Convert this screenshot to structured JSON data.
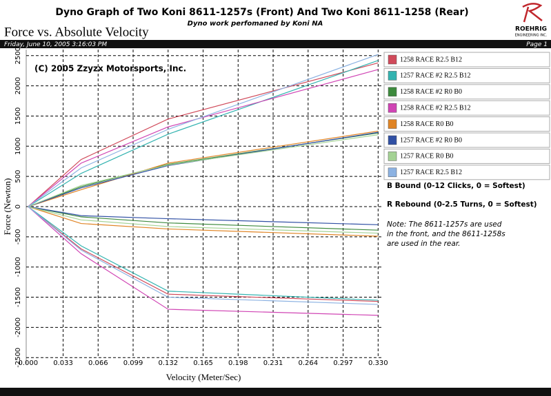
{
  "header": {
    "date": "Friday, June 10, 2005 3:16:03 PM",
    "page": "Page 1"
  },
  "logo": {
    "name": "ROEHRIG",
    "tagline": "ENGINEERING INC."
  },
  "chart_data": {
    "type": "line",
    "title": "Dyno Graph of Two Koni 8611-1257s (Front) And Two Koni 8611-1258 (Rear)",
    "subtitle": "Dyno work perfomaned by Koni NA",
    "heading": "Force vs. Absolute Velocity",
    "annotation": "(C) 2005 Zzyzx Motorsports, Inc.",
    "x_label": "Velocity (Meter/Sec)",
    "y_label": "Force (Newton)",
    "x": [
      0,
      0.05,
      0.132,
      0.33
    ],
    "xlim": [
      -0.007,
      0.335
    ],
    "xticks": [
      {
        "value": 0,
        "label": "0.000"
      },
      0.033,
      0.066,
      0.099,
      0.132,
      0.165,
      0.198,
      0.231,
      0.264,
      0.297,
      {
        "value": 0.33,
        "label": "0.330"
      }
    ],
    "ylim": [
      -2600,
      2600
    ],
    "yticks": [
      2500,
      2000,
      1500,
      1000,
      500,
      0,
      -500,
      -1000,
      -1500,
      -2000,
      -2500
    ],
    "grid": true,
    "series": [
      {
        "name": "1258 RACE R2.5 B12",
        "color": "#d04a5a",
        "values": [
          0,
          780,
          1450,
          2380
        ],
        "rebound": [
          0,
          -700,
          -1450,
          -1570
        ]
      },
      {
        "name": "1257 RACE #2 R2.5 B12",
        "color": "#33b3b0",
        "values": [
          0,
          550,
          1200,
          2420
        ],
        "rebound": [
          0,
          -650,
          -1400,
          -1550
        ]
      },
      {
        "name": "1258 RACE #2 R0 B0",
        "color": "#3d8a3d",
        "values": [
          0,
          330,
          700,
          1220
        ],
        "rebound": [
          0,
          -170,
          -270,
          -390
        ]
      },
      {
        "name": "1258 RACE #2 R2.5 B12",
        "color": "#d044b4",
        "values": [
          0,
          720,
          1320,
          2270
        ],
        "rebound": [
          0,
          -780,
          -1700,
          -1800
        ]
      },
      {
        "name": "1258 RACE R0 B0",
        "color": "#e08424",
        "values": [
          0,
          280,
          720,
          1250
        ],
        "rebound": [
          0,
          -280,
          -370,
          -490
        ]
      },
      {
        "name": "1257 RACE #2 R0 B0",
        "color": "#3050a4",
        "values": [
          0,
          310,
          680,
          1230
        ],
        "rebound": [
          0,
          -150,
          -200,
          -300
        ]
      },
      {
        "name": "1257 RACE R0 B0",
        "color": "#a4d294",
        "values": [
          0,
          350,
          690,
          1190
        ],
        "rebound": [
          0,
          -220,
          -330,
          -440
        ]
      },
      {
        "name": "1257 RACE R2.5 B12",
        "color": "#8cb2e2",
        "values": [
          0,
          640,
          1280,
          2520
        ],
        "rebound": [
          0,
          -720,
          -1500,
          -1620
        ]
      }
    ],
    "notes": [
      "B Bound (0-12 Clicks, 0 = Softest)",
      "R Rebound (0-2.5 Turns, 0 = Softest)"
    ],
    "note": [
      "Note: The 8611-1257s are used",
      "in the front, and the 8611-1258s",
      "are used in the rear."
    ]
  }
}
